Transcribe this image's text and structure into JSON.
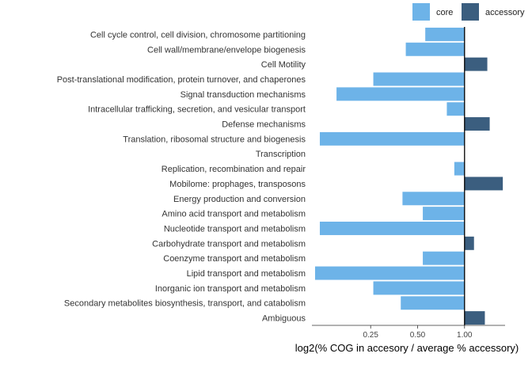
{
  "chart_data": {
    "type": "bar",
    "orientation": "horizontal",
    "xlabel": "log2(% COG in accesory / average % accessory)",
    "ylabel": "",
    "x_scale": "log2",
    "xlim": [
      0.105,
      1.82
    ],
    "baseline": 1.0,
    "xticks": [
      0.25,
      0.5,
      1.0
    ],
    "xtick_labels": [
      "0.25",
      "0.50",
      "1.00"
    ],
    "grid": false,
    "legend_position": "top-right",
    "legend": [
      {
        "label": "core",
        "color": "#6db3e8"
      },
      {
        "label": "accessory",
        "color": "#3b5e7f"
      }
    ],
    "categories": [
      "Cell cycle control, cell division, chromosome partitioning",
      "Cell wall/membrane/envelope biogenesis",
      "Cell Motility",
      "Post-translational modification, protein turnover, and chaperones",
      "Signal transduction mechanisms",
      "Intracellular trafficking, secretion, and vesicular transport",
      "Defense mechanisms",
      "Translation, ribosomal structure and biogenesis",
      "Transcription",
      "Replication, recombination and repair",
      "Mobilome: prophages, transposons",
      "Energy production and conversion",
      "Amino acid transport and metabolism",
      "Nucleotide transport and metabolism",
      "Carbohydrate transport and metabolism",
      "Coenzyme transport and metabolism",
      "Lipid transport and metabolism",
      "Inorganic ion transport and metabolism",
      "Secondary metabolites biosynthesis, transport, and catabolism",
      "Ambiguous"
    ],
    "values": [
      0.56,
      0.42,
      1.4,
      0.26,
      0.151,
      0.77,
      1.45,
      0.118,
      1.0,
      0.86,
      1.76,
      0.4,
      0.54,
      0.118,
      1.15,
      0.54,
      0.11,
      0.26,
      0.39,
      1.35
    ],
    "groups": [
      "core",
      "core",
      "accessory",
      "core",
      "core",
      "core",
      "accessory",
      "core",
      "core",
      "core",
      "accessory",
      "core",
      "core",
      "core",
      "accessory",
      "core",
      "core",
      "core",
      "core",
      "accessory"
    ]
  }
}
